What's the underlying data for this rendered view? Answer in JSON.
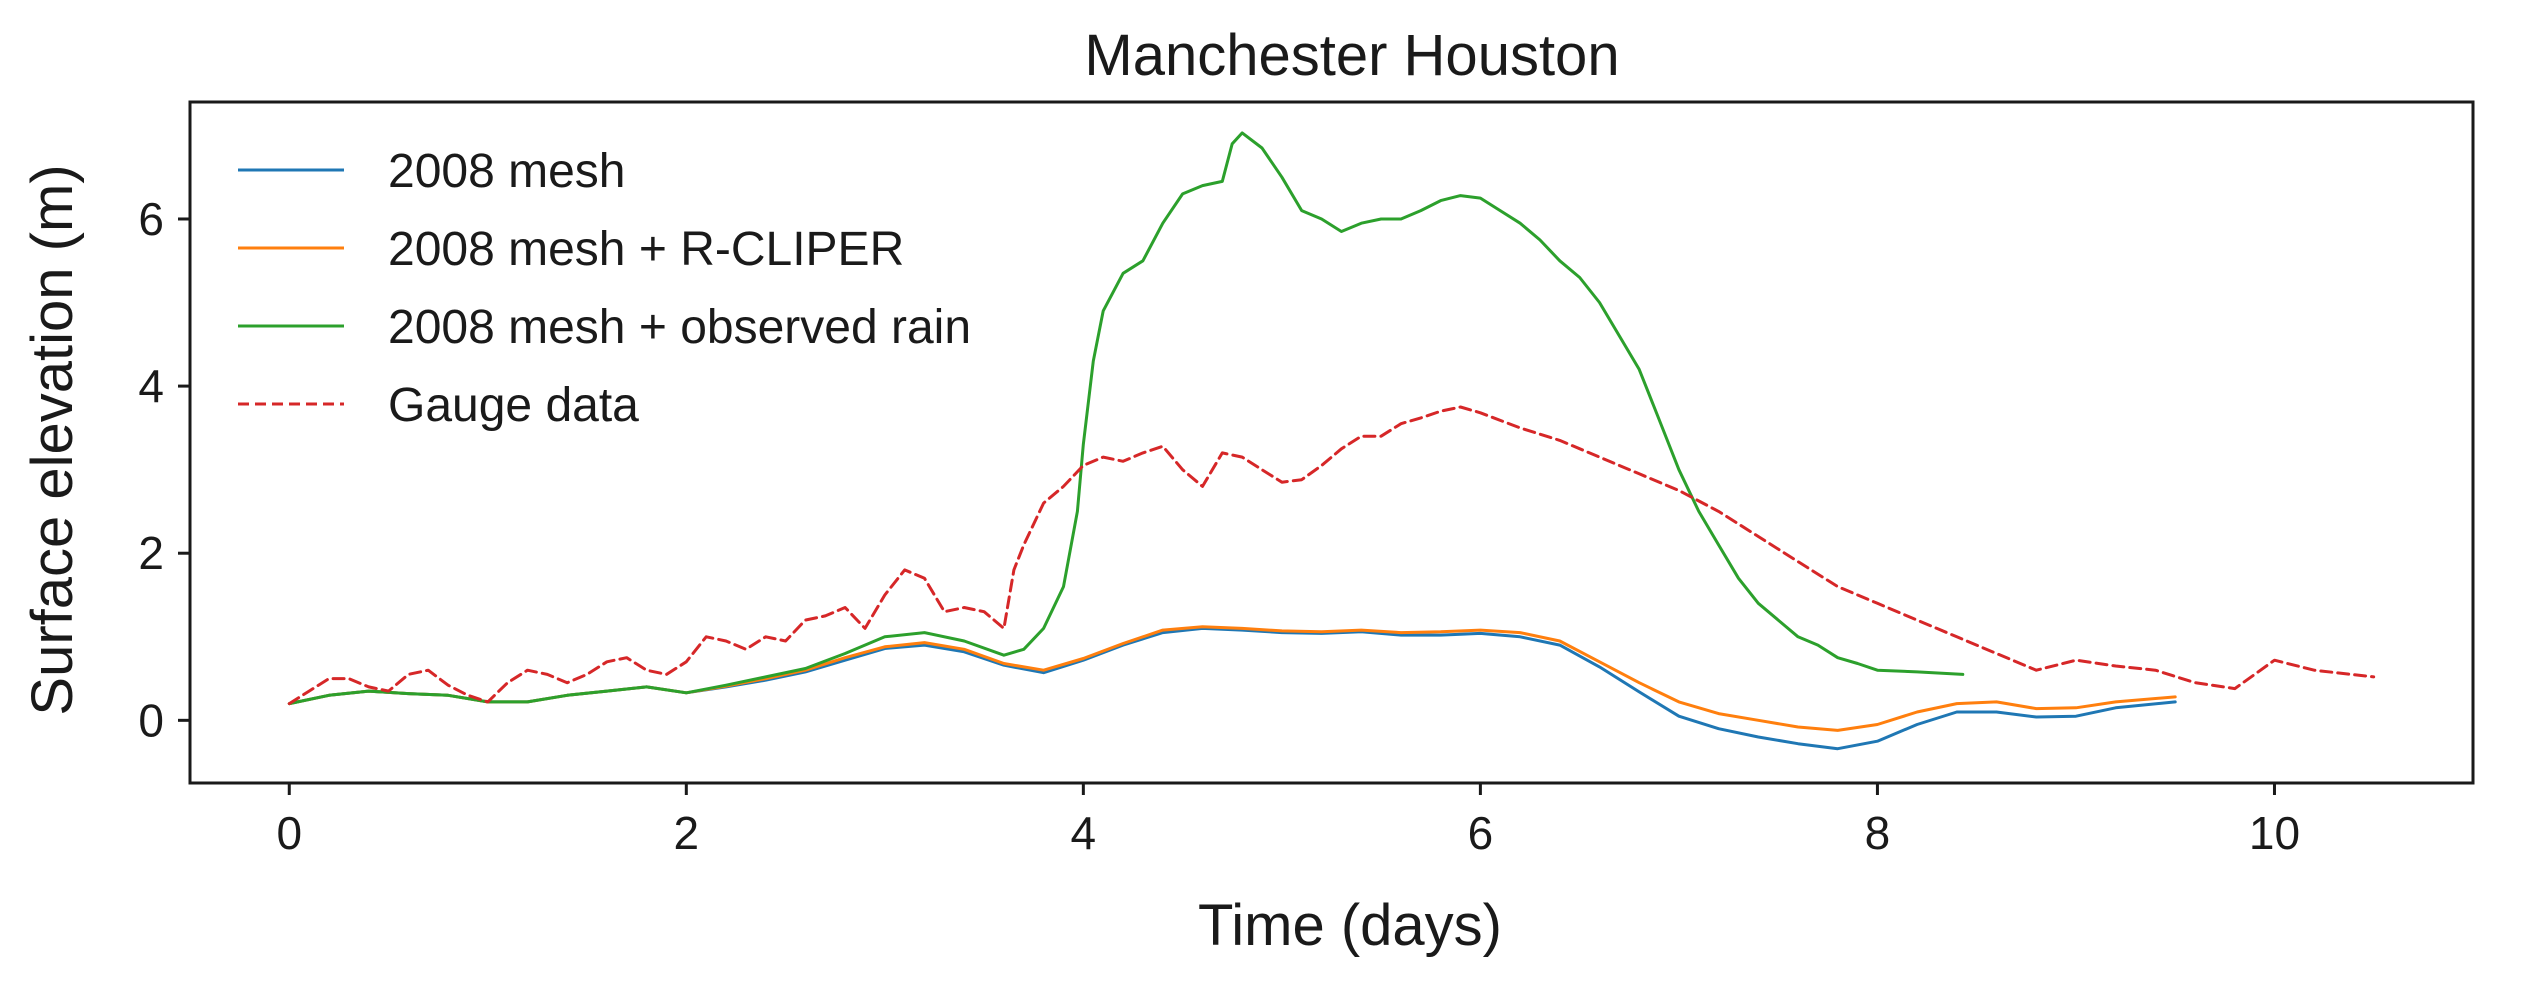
{
  "chart_data": {
    "type": "line",
    "title": "Manchester Houston",
    "xlabel": "Time (days)",
    "ylabel": "Surface elevation (m)",
    "xlim": [
      -0.5,
      11.0
    ],
    "ylim": [
      -0.75,
      7.4
    ],
    "xticks": [
      0,
      2,
      4,
      6,
      8,
      10
    ],
    "yticks": [
      0,
      2,
      4,
      6
    ],
    "grid": false,
    "legend_position": "top-left",
    "series": [
      {
        "name": "2008 mesh",
        "color": "#1f77b4",
        "dash": "solid",
        "x": [
          0,
          0.2,
          0.4,
          0.6,
          0.8,
          1.0,
          1.2,
          1.4,
          1.6,
          1.8,
          2.0,
          2.2,
          2.4,
          2.6,
          2.8,
          3.0,
          3.2,
          3.4,
          3.6,
          3.8,
          4.0,
          4.2,
          4.4,
          4.6,
          4.8,
          5.0,
          5.2,
          5.4,
          5.6,
          5.8,
          6.0,
          6.2,
          6.4,
          6.6,
          6.8,
          7.0,
          7.2,
          7.4,
          7.6,
          7.8,
          8.0,
          8.2,
          8.4,
          8.6,
          8.8,
          9.0,
          9.2,
          9.5
        ],
        "y": [
          0.2,
          0.3,
          0.35,
          0.32,
          0.3,
          0.22,
          0.22,
          0.3,
          0.35,
          0.4,
          0.33,
          0.4,
          0.48,
          0.58,
          0.72,
          0.86,
          0.9,
          0.82,
          0.66,
          0.57,
          0.72,
          0.9,
          1.05,
          1.1,
          1.08,
          1.05,
          1.04,
          1.06,
          1.02,
          1.02,
          1.04,
          1.0,
          0.9,
          0.64,
          0.34,
          0.05,
          -0.1,
          -0.2,
          -0.28,
          -0.34,
          -0.25,
          -0.05,
          0.1,
          0.1,
          0.04,
          0.05,
          0.15,
          0.22
        ]
      },
      {
        "name": "2008 mesh + R-CLIPER",
        "color": "#ff7f0e",
        "dash": "solid",
        "x": [
          0,
          0.2,
          0.4,
          0.6,
          0.8,
          1.0,
          1.2,
          1.4,
          1.6,
          1.8,
          2.0,
          2.2,
          2.4,
          2.6,
          2.8,
          3.0,
          3.2,
          3.4,
          3.6,
          3.8,
          4.0,
          4.2,
          4.4,
          4.6,
          4.8,
          5.0,
          5.2,
          5.4,
          5.6,
          5.8,
          6.0,
          6.2,
          6.4,
          6.6,
          6.8,
          7.0,
          7.2,
          7.4,
          7.6,
          7.8,
          8.0,
          8.2,
          8.4,
          8.6,
          8.8,
          9.0,
          9.2,
          9.5
        ],
        "y": [
          0.2,
          0.3,
          0.35,
          0.32,
          0.3,
          0.22,
          0.22,
          0.3,
          0.35,
          0.4,
          0.33,
          0.41,
          0.5,
          0.6,
          0.75,
          0.88,
          0.93,
          0.85,
          0.68,
          0.6,
          0.74,
          0.92,
          1.08,
          1.12,
          1.1,
          1.07,
          1.06,
          1.08,
          1.05,
          1.06,
          1.08,
          1.05,
          0.95,
          0.7,
          0.45,
          0.22,
          0.08,
          0.0,
          -0.08,
          -0.12,
          -0.05,
          0.1,
          0.2,
          0.22,
          0.14,
          0.15,
          0.22,
          0.28
        ]
      },
      {
        "name": "2008 mesh + observed rain",
        "color": "#2ca02c",
        "dash": "solid",
        "x": [
          0,
          0.2,
          0.4,
          0.6,
          0.8,
          1.0,
          1.2,
          1.4,
          1.6,
          1.8,
          2.0,
          2.2,
          2.4,
          2.6,
          2.8,
          3.0,
          3.2,
          3.4,
          3.6,
          3.7,
          3.8,
          3.9,
          3.97,
          4.0,
          4.05,
          4.1,
          4.2,
          4.3,
          4.4,
          4.5,
          4.6,
          4.7,
          4.75,
          4.8,
          4.9,
          5.0,
          5.1,
          5.2,
          5.3,
          5.4,
          5.5,
          5.6,
          5.7,
          5.8,
          5.9,
          6.0,
          6.1,
          6.2,
          6.3,
          6.4,
          6.5,
          6.6,
          6.7,
          6.8,
          6.9,
          7.0,
          7.1,
          7.2,
          7.3,
          7.4,
          7.5,
          7.6,
          7.7,
          7.8,
          7.9,
          8.0,
          8.2,
          8.43
        ],
        "y": [
          0.2,
          0.3,
          0.35,
          0.32,
          0.3,
          0.22,
          0.22,
          0.3,
          0.35,
          0.4,
          0.33,
          0.42,
          0.52,
          0.62,
          0.8,
          1.0,
          1.05,
          0.95,
          0.78,
          0.85,
          1.1,
          1.6,
          2.5,
          3.3,
          4.3,
          4.9,
          5.35,
          5.5,
          5.95,
          6.3,
          6.4,
          6.45,
          6.9,
          7.03,
          6.85,
          6.5,
          6.1,
          6.0,
          5.85,
          5.95,
          6.0,
          6.0,
          6.1,
          6.22,
          6.28,
          6.25,
          6.1,
          5.95,
          5.75,
          5.5,
          5.3,
          5.0,
          4.6,
          4.2,
          3.6,
          3.0,
          2.5,
          2.1,
          1.7,
          1.4,
          1.2,
          1.0,
          0.9,
          0.75,
          0.68,
          0.6,
          0.58,
          0.55
        ]
      },
      {
        "name": "Gauge data",
        "color": "#d62728",
        "dash": "dashed",
        "x": [
          0,
          0.1,
          0.2,
          0.3,
          0.4,
          0.5,
          0.6,
          0.7,
          0.8,
          0.9,
          1.0,
          1.1,
          1.2,
          1.3,
          1.4,
          1.5,
          1.6,
          1.7,
          1.8,
          1.9,
          2.0,
          2.1,
          2.2,
          2.3,
          2.4,
          2.5,
          2.6,
          2.7,
          2.8,
          2.9,
          3.0,
          3.1,
          3.2,
          3.3,
          3.4,
          3.5,
          3.6,
          3.65,
          3.7,
          3.8,
          3.9,
          4.0,
          4.1,
          4.2,
          4.3,
          4.4,
          4.5,
          4.6,
          4.7,
          4.8,
          4.9,
          5.0,
          5.1,
          5.2,
          5.3,
          5.4,
          5.5,
          5.6,
          5.7,
          5.8,
          5.9,
          6.0,
          6.2,
          6.4,
          6.6,
          6.8,
          7.0,
          7.2,
          7.4,
          7.6,
          7.8,
          8.0,
          8.2,
          8.4,
          8.6,
          8.8,
          9.0,
          9.2,
          9.4,
          9.6,
          9.8,
          10.0,
          10.2,
          10.5
        ],
        "y": [
          0.2,
          0.35,
          0.5,
          0.5,
          0.4,
          0.35,
          0.55,
          0.6,
          0.42,
          0.3,
          0.22,
          0.45,
          0.6,
          0.55,
          0.45,
          0.55,
          0.7,
          0.75,
          0.6,
          0.55,
          0.7,
          1.0,
          0.95,
          0.85,
          1.0,
          0.95,
          1.2,
          1.25,
          1.35,
          1.1,
          1.5,
          1.8,
          1.7,
          1.3,
          1.35,
          1.3,
          1.1,
          1.8,
          2.1,
          2.6,
          2.8,
          3.05,
          3.15,
          3.1,
          3.2,
          3.28,
          3.0,
          2.8,
          3.2,
          3.15,
          3.0,
          2.85,
          2.88,
          3.05,
          3.25,
          3.4,
          3.4,
          3.55,
          3.62,
          3.7,
          3.75,
          3.68,
          3.5,
          3.35,
          3.15,
          2.95,
          2.75,
          2.5,
          2.2,
          1.9,
          1.6,
          1.4,
          1.2,
          1.0,
          0.8,
          0.6,
          0.72,
          0.65,
          0.6,
          0.45,
          0.38,
          0.72,
          0.6,
          0.52
        ]
      }
    ]
  }
}
